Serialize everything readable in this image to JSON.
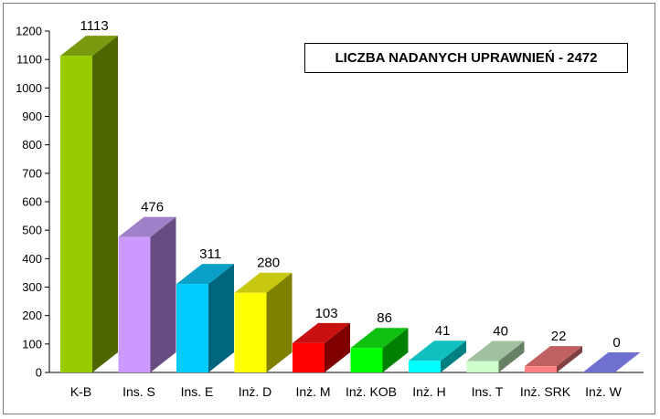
{
  "chart_data": {
    "type": "bar",
    "title": "LICZBA NADANYCH UPRAWNIEŃ - 2472",
    "categories": [
      "K-B",
      "Ins. S",
      "Ins. E",
      "Inż. D",
      "Inż. M",
      "Inż. KOB",
      "Inż. H",
      "Ins. T",
      "Inż. SRK",
      "Inż. W"
    ],
    "values": [
      1113,
      476,
      311,
      280,
      103,
      86,
      41,
      40,
      22,
      0
    ],
    "data_labels": [
      "1113",
      "476",
      "311",
      "280",
      "103",
      "86",
      "41",
      "40",
      "22",
      "0"
    ],
    "ylim": [
      0,
      1200
    ],
    "yticks": [
      0,
      100,
      200,
      300,
      400,
      500,
      600,
      700,
      800,
      900,
      1000,
      1100,
      1200
    ],
    "ytick_labels": [
      "0",
      "100",
      "200",
      "300",
      "400",
      "500",
      "600",
      "700",
      "800",
      "900",
      "1000",
      "1100",
      "1200"
    ],
    "grid": false,
    "legend": "none",
    "style": "3d",
    "colors": [
      {
        "front": "#99cc00",
        "side": "#4d6600",
        "top": "#7a9a10"
      },
      {
        "front": "#cc99ff",
        "side": "#664c80",
        "top": "#a080c8"
      },
      {
        "front": "#00ccff",
        "side": "#006680",
        "top": "#0aa0c8"
      },
      {
        "front": "#ffff00",
        "side": "#808000",
        "top": "#c8c810"
      },
      {
        "front": "#ff0000",
        "side": "#800000",
        "top": "#c81010"
      },
      {
        "front": "#00ff00",
        "side": "#008000",
        "top": "#10c010"
      },
      {
        "front": "#00ffff",
        "side": "#008080",
        "top": "#10c0c0"
      },
      {
        "front": "#ccffcc",
        "side": "#668066",
        "top": "#a0c0a0"
      },
      {
        "front": "#ff8080",
        "side": "#804040",
        "top": "#c06060"
      },
      {
        "front": "#8080ff",
        "side": "#404080",
        "top": "#7070d0"
      }
    ]
  }
}
